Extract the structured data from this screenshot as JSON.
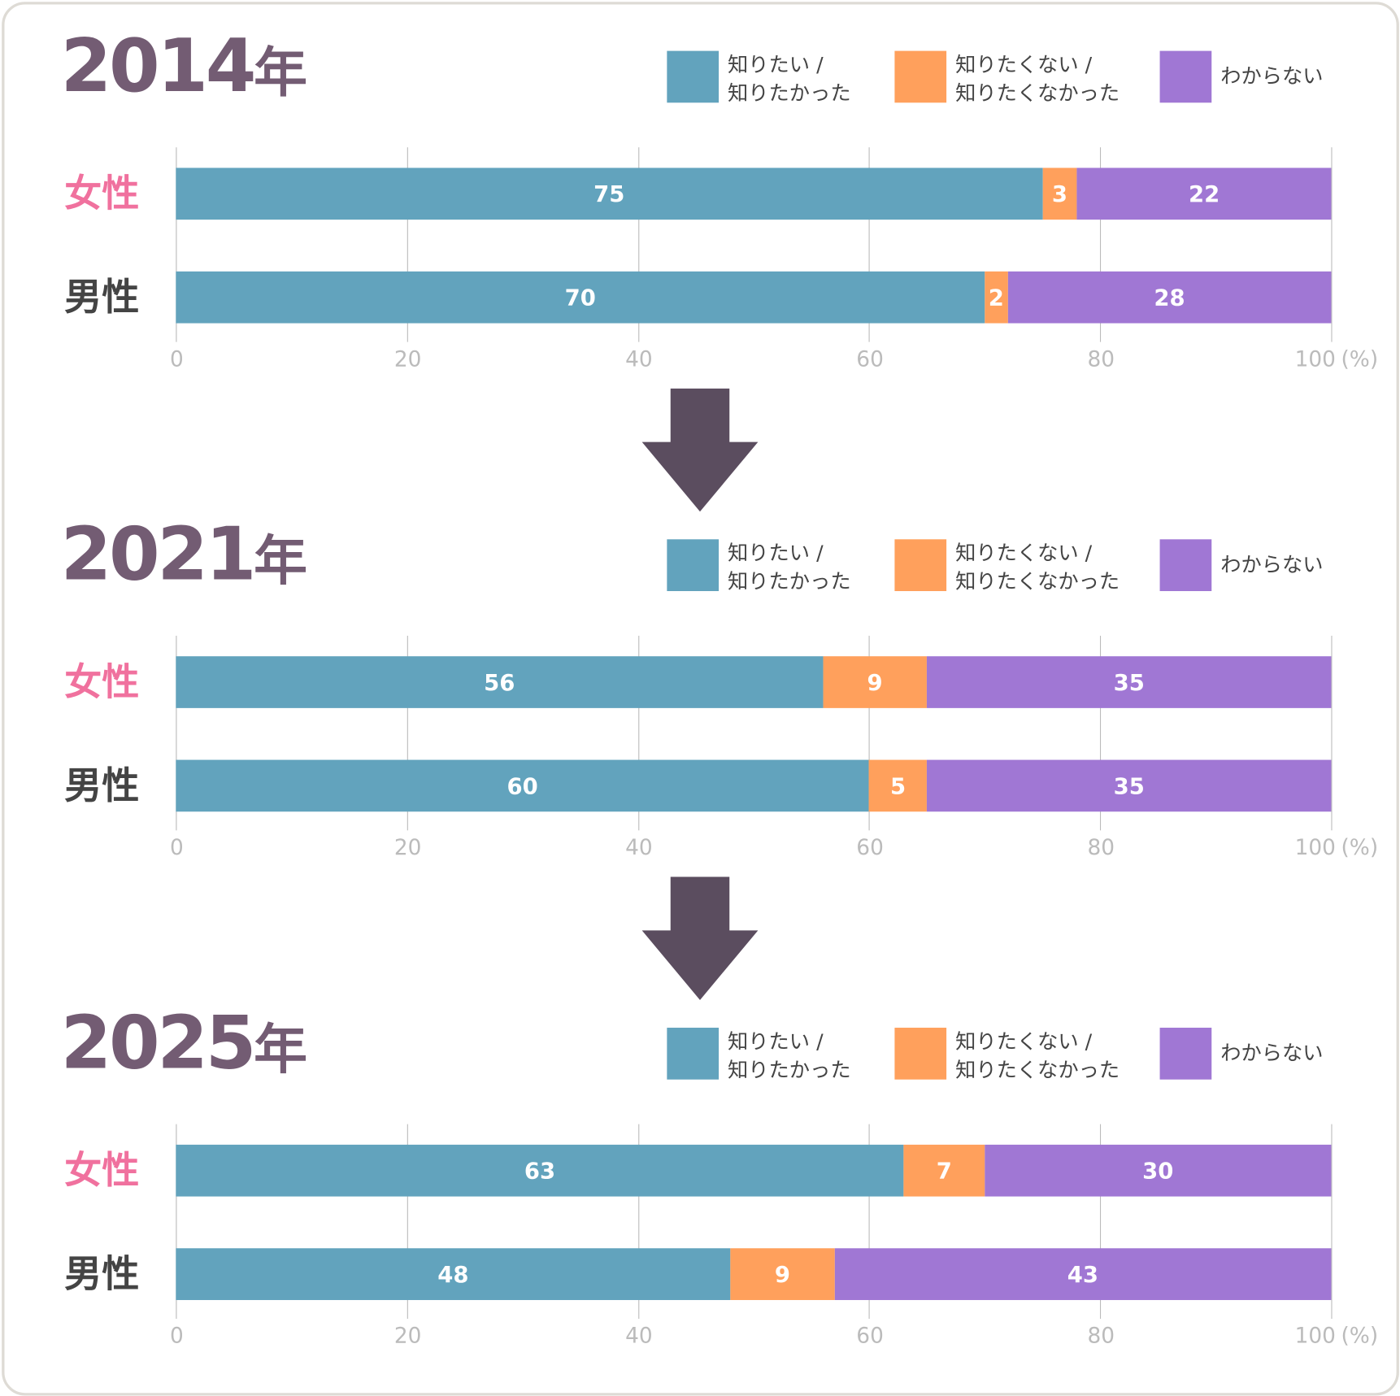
{
  "colors": {
    "want": "#62a3bd",
    "notwant": "#ffa05c",
    "unknown": "#a077d4",
    "female": "#f0719e",
    "male": "#444444",
    "year": "#735c73",
    "arrow": "#5b4d5f"
  },
  "legend": [
    {
      "line1": "知りたい /",
      "line2": "知りたかった",
      "color": "#62a3bd"
    },
    {
      "line1": "知りたくない /",
      "line2": "知りたくなかった",
      "color": "#ffa05c"
    },
    {
      "line1": "わからない",
      "line2": "",
      "color": "#a077d4"
    }
  ],
  "chart_data": [
    {
      "type": "bar",
      "stacked": true,
      "orientation": "horizontal",
      "title": "2014",
      "title_suffix": "年",
      "categories": [
        "女性",
        "男性"
      ],
      "series": [
        {
          "name": "知りたい / 知りたかった",
          "values": [
            75,
            70
          ]
        },
        {
          "name": "知りたくない / 知りたくなかった",
          "values": [
            3,
            2
          ]
        },
        {
          "name": "わからない",
          "values": [
            22,
            28
          ]
        }
      ],
      "xlim": [
        0,
        100
      ],
      "xticks": [
        "0",
        "20",
        "40",
        "60",
        "80",
        "100"
      ],
      "xunit": "(%)",
      "grid": true,
      "legend": "top-right"
    },
    {
      "type": "bar",
      "stacked": true,
      "orientation": "horizontal",
      "title": "2021",
      "title_suffix": "年",
      "categories": [
        "女性",
        "男性"
      ],
      "series": [
        {
          "name": "知りたい / 知りたかった",
          "values": [
            56,
            60
          ]
        },
        {
          "name": "知りたくない / 知りたくなかった",
          "values": [
            9,
            5
          ]
        },
        {
          "name": "わからない",
          "values": [
            35,
            35
          ]
        }
      ],
      "xlim": [
        0,
        100
      ],
      "xticks": [
        "0",
        "20",
        "40",
        "60",
        "80",
        "100"
      ],
      "xunit": "(%)",
      "grid": true,
      "legend": "top-right"
    },
    {
      "type": "bar",
      "stacked": true,
      "orientation": "horizontal",
      "title": "2025",
      "title_suffix": "年",
      "categories": [
        "女性",
        "男性"
      ],
      "series": [
        {
          "name": "知りたい / 知りたかった",
          "values": [
            63,
            48
          ]
        },
        {
          "name": "知りたくない / 知りたくなかった",
          "values": [
            7,
            9
          ]
        },
        {
          "name": "わからない",
          "values": [
            30,
            43
          ]
        }
      ],
      "xlim": [
        0,
        100
      ],
      "xticks": [
        "0",
        "20",
        "40",
        "60",
        "80",
        "100"
      ],
      "xunit": "(%)",
      "grid": true,
      "legend": "top-right"
    }
  ]
}
